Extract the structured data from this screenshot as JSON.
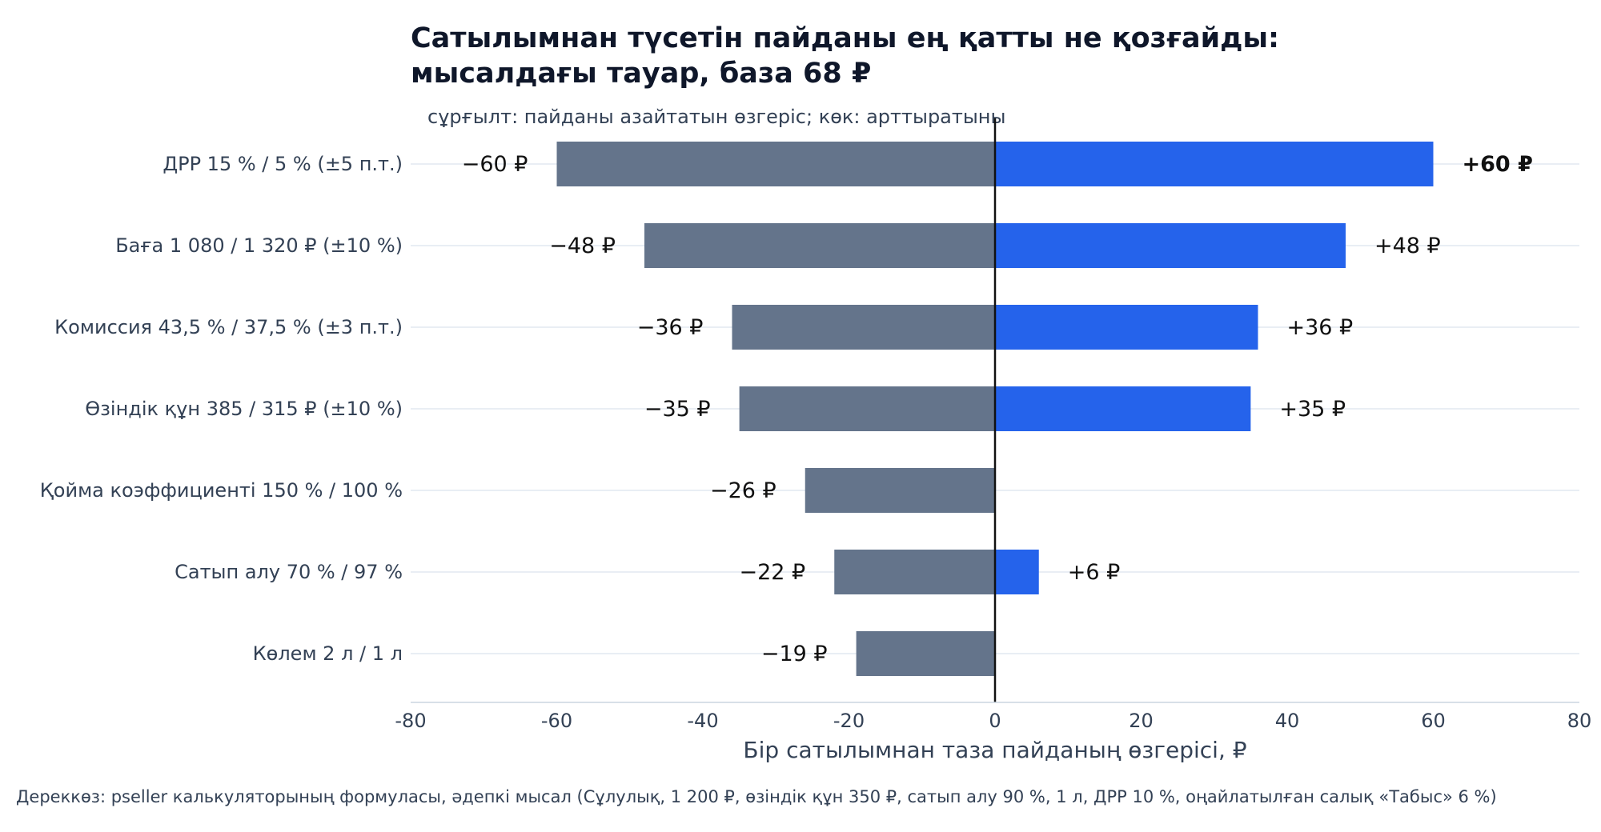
{
  "chart_data": {
    "type": "bar",
    "orientation": "horizontal",
    "variant": "tornado",
    "title": "Сатылымнан түсетін пайданы ең қатты не қозғайды:\nмысалдағы тауар, база 68 ₽",
    "subtitle": "сұрғылт: пайданы азайтатын өзгеріс; көк: арттыратыны",
    "xlabel": "Бір сатылымнан таза пайданың өзгерісі, ₽",
    "xlim": [
      -80,
      80
    ],
    "x_ticks": [
      -80,
      -60,
      -40,
      -20,
      0,
      20,
      40,
      60,
      80
    ],
    "categories": [
      "ДРР 15 % / 5 % (±5 п.т.)",
      "Баға 1 080 / 1 320 ₽ (±10 %)",
      "Комиссия 43,5 % / 37,5 % (±3 п.т.)",
      "Өзіндік құн 385 / 315 ₽ (±10 %)",
      "Қойма коэффициенті 150 % / 100 %",
      "Сатып алу 70 % / 97 %",
      "Көлем 2 л / 1 л"
    ],
    "series": [
      {
        "values": [
          -60,
          -48,
          -36,
          -35,
          -26,
          -22,
          -19
        ],
        "labels": [
          "−60 ₽",
          "−48 ₽",
          "−36 ₽",
          "−35 ₽",
          "−26 ₽",
          "−22 ₽",
          "−19 ₽"
        ],
        "color": "#64748b"
      },
      {
        "values": [
          60,
          48,
          36,
          35,
          0,
          6,
          0
        ],
        "labels": [
          "+60 ₽",
          "+48 ₽",
          "+36 ₽",
          "+35 ₽",
          "",
          "+6 ₽",
          ""
        ],
        "color": "#2563eb"
      }
    ],
    "grid": "horizontal",
    "legend": "none"
  },
  "source_note": "Дереккөз: pseller калькуляторының формуласы, әдепкі мысал (Сұлулық, 1 200 ₽, өзіндік құн 350 ₽, сатып алу 90 %, 1 л, ДРР 10 %, оңайлатылған салық «Табыс» 6 %)"
}
